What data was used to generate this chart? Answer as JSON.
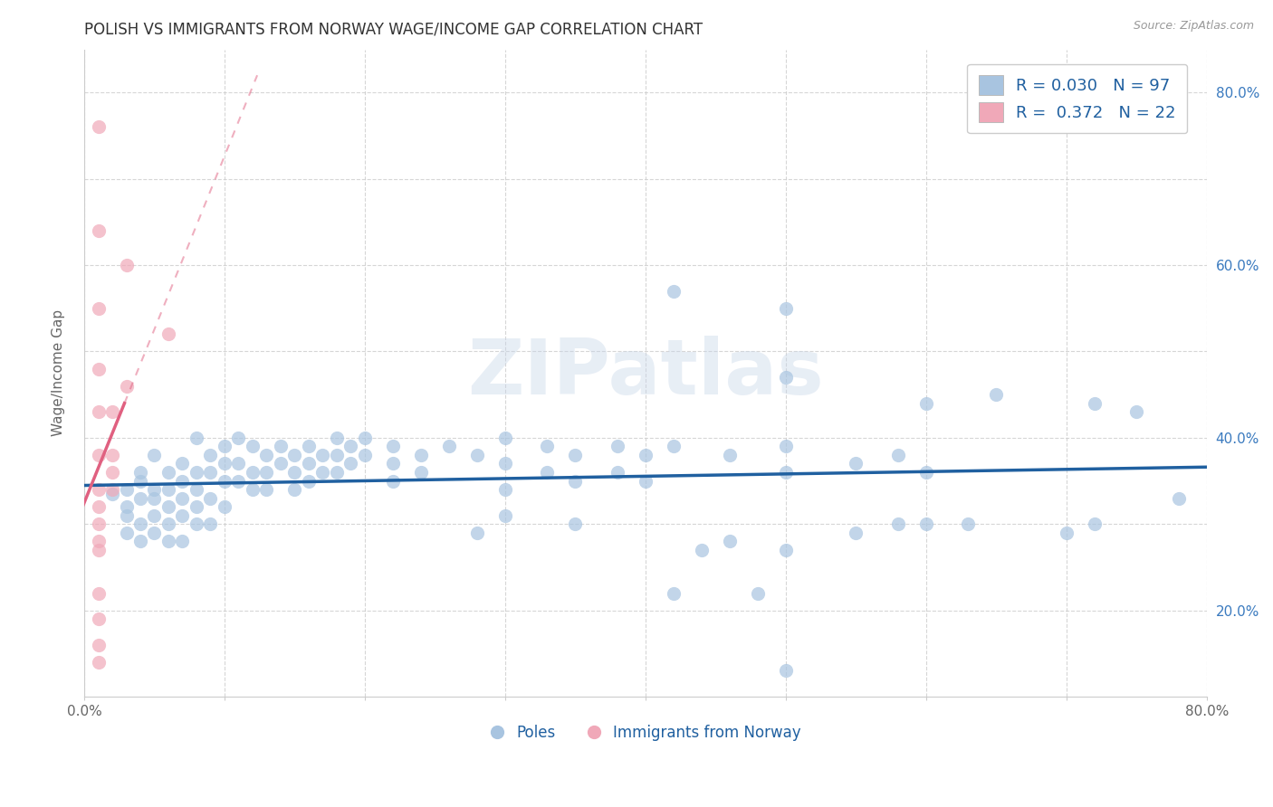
{
  "title": "POLISH VS IMMIGRANTS FROM NORWAY WAGE/INCOME GAP CORRELATION CHART",
  "source": "Source: ZipAtlas.com",
  "ylabel": "Wage/Income Gap",
  "xlim": [
    0.0,
    0.8
  ],
  "ylim": [
    0.1,
    0.85
  ],
  "blue_color": "#a8c4e0",
  "pink_color": "#f0a8b8",
  "blue_line_color": "#2060a0",
  "pink_line_color": "#e06080",
  "title_color": "#1a5294",
  "ytick_color": "#3a7abf",
  "axis_tick_color": "#666666",
  "grid_color": "#cccccc",
  "blue_scatter_x": [
    0.02,
    0.03,
    0.03,
    0.03,
    0.03,
    0.04,
    0.04,
    0.04,
    0.04,
    0.04,
    0.05,
    0.05,
    0.05,
    0.05,
    0.05,
    0.06,
    0.06,
    0.06,
    0.06,
    0.06,
    0.07,
    0.07,
    0.07,
    0.07,
    0.07,
    0.08,
    0.08,
    0.08,
    0.08,
    0.08,
    0.09,
    0.09,
    0.09,
    0.09,
    0.1,
    0.1,
    0.1,
    0.1,
    0.11,
    0.11,
    0.11,
    0.12,
    0.12,
    0.12,
    0.13,
    0.13,
    0.13,
    0.14,
    0.14,
    0.15,
    0.15,
    0.15,
    0.16,
    0.16,
    0.16,
    0.17,
    0.17,
    0.18,
    0.18,
    0.18,
    0.19,
    0.19,
    0.2,
    0.2,
    0.22,
    0.22,
    0.22,
    0.24,
    0.24,
    0.26,
    0.28,
    0.28,
    0.3,
    0.3,
    0.3,
    0.3,
    0.33,
    0.33,
    0.35,
    0.35,
    0.35,
    0.38,
    0.38,
    0.4,
    0.4,
    0.42,
    0.42,
    0.42,
    0.44,
    0.46,
    0.46,
    0.48,
    0.5,
    0.5,
    0.5,
    0.5,
    0.5,
    0.5,
    0.55,
    0.55,
    0.58,
    0.58,
    0.6,
    0.6,
    0.6,
    0.63,
    0.65,
    0.7,
    0.72,
    0.72,
    0.75,
    0.78
  ],
  "blue_scatter_y": [
    0.335,
    0.32,
    0.29,
    0.34,
    0.31,
    0.36,
    0.33,
    0.28,
    0.35,
    0.3,
    0.38,
    0.34,
    0.31,
    0.29,
    0.33,
    0.36,
    0.34,
    0.32,
    0.3,
    0.28,
    0.37,
    0.35,
    0.33,
    0.31,
    0.28,
    0.4,
    0.36,
    0.34,
    0.32,
    0.3,
    0.38,
    0.36,
    0.33,
    0.3,
    0.39,
    0.37,
    0.35,
    0.32,
    0.4,
    0.37,
    0.35,
    0.39,
    0.36,
    0.34,
    0.38,
    0.36,
    0.34,
    0.39,
    0.37,
    0.38,
    0.36,
    0.34,
    0.39,
    0.37,
    0.35,
    0.38,
    0.36,
    0.4,
    0.38,
    0.36,
    0.39,
    0.37,
    0.4,
    0.38,
    0.39,
    0.37,
    0.35,
    0.38,
    0.36,
    0.39,
    0.38,
    0.29,
    0.4,
    0.37,
    0.34,
    0.31,
    0.39,
    0.36,
    0.38,
    0.35,
    0.3,
    0.39,
    0.36,
    0.38,
    0.35,
    0.57,
    0.39,
    0.22,
    0.27,
    0.38,
    0.28,
    0.22,
    0.55,
    0.47,
    0.39,
    0.36,
    0.27,
    0.13,
    0.37,
    0.29,
    0.38,
    0.3,
    0.44,
    0.36,
    0.3,
    0.3,
    0.45,
    0.29,
    0.44,
    0.3,
    0.43,
    0.33
  ],
  "pink_scatter_x": [
    0.01,
    0.01,
    0.01,
    0.01,
    0.01,
    0.01,
    0.01,
    0.01,
    0.01,
    0.01,
    0.01,
    0.01,
    0.01,
    0.01,
    0.01,
    0.02,
    0.02,
    0.02,
    0.02,
    0.03,
    0.03,
    0.06
  ],
  "pink_scatter_y": [
    0.76,
    0.64,
    0.55,
    0.48,
    0.43,
    0.38,
    0.34,
    0.32,
    0.3,
    0.28,
    0.27,
    0.22,
    0.19,
    0.16,
    0.14,
    0.43,
    0.38,
    0.36,
    0.34,
    0.6,
    0.46,
    0.52
  ],
  "watermark": "ZIPatlas",
  "legend_text_color": "#2060a0"
}
